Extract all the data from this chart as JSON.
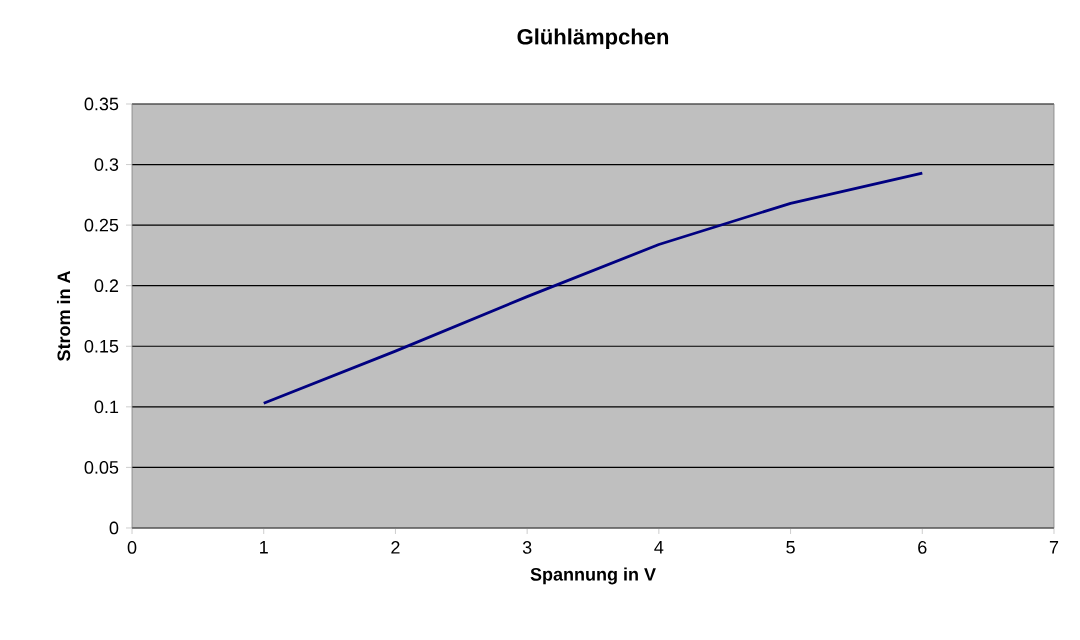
{
  "chart_data": {
    "type": "line",
    "title": "Glühlämpchen",
    "xlabel": "Spannung in V",
    "ylabel": "Strom in A",
    "x": [
      1,
      2,
      3,
      4,
      5,
      6
    ],
    "series": [
      {
        "color": "#000080",
        "values": [
          0.103,
          0.146,
          0.191,
          0.234,
          0.268,
          0.293
        ]
      }
    ],
    "xlim": [
      0,
      7
    ],
    "xticks": [
      0,
      1,
      2,
      3,
      4,
      5,
      6,
      7
    ],
    "ylim": [
      0,
      0.35
    ],
    "yticks": [
      0,
      0.05,
      0.1,
      0.15,
      0.2,
      0.25,
      0.3,
      0.35
    ],
    "grid": "y",
    "marker": "none",
    "line_style": "solid"
  }
}
